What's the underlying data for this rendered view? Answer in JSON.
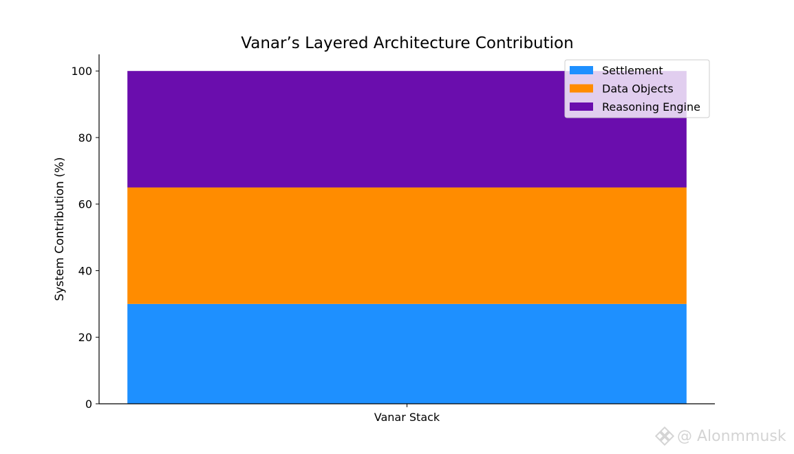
{
  "chart_data": {
    "type": "bar",
    "stacked": true,
    "title": "Vanar’s Layered Architecture Contribution",
    "xlabel": "",
    "ylabel": "System Contribution (%)",
    "categories": [
      "Vanar Stack"
    ],
    "series": [
      {
        "name": "Settlement",
        "values": [
          30
        ],
        "color": "#1e90ff"
      },
      {
        "name": "Data Objects",
        "values": [
          35
        ],
        "color": "#ff8c00"
      },
      {
        "name": "Reasoning Engine",
        "values": [
          35
        ],
        "color": "#6a0dad"
      }
    ],
    "ylim": [
      0,
      105
    ],
    "yticks": [
      0,
      20,
      40,
      60,
      80,
      100
    ],
    "grid": false,
    "legend_position": "top-right"
  },
  "watermark": {
    "text": "@ Alonmmusk",
    "icon": "binance-logo-icon"
  }
}
